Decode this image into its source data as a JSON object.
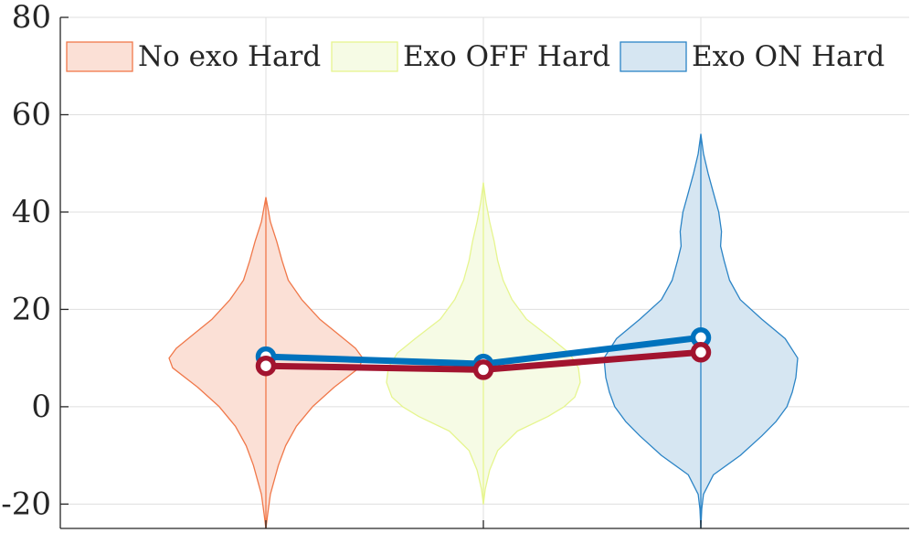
{
  "chart_data": {
    "type": "violin",
    "categories": [
      "",
      "",
      ""
    ],
    "ylim": [
      -25,
      80
    ],
    "yticks": [
      -20,
      0,
      20,
      40,
      60,
      80
    ],
    "ytick_labels": [
      "-20",
      "0",
      "20",
      "40",
      "60",
      "80"
    ],
    "grid": true,
    "legend_position": "top",
    "series": [
      {
        "name": "No exo Hard",
        "fill_color": "#fbe0d6",
        "edge_color": "#f0784a",
        "range": [
          -25,
          43
        ],
        "median": 8,
        "density": [
          [
            -25,
            0
          ],
          [
            -22,
            2
          ],
          [
            -18,
            5
          ],
          [
            -12,
            14
          ],
          [
            -8,
            22
          ],
          [
            -4,
            34
          ],
          [
            0,
            52
          ],
          [
            4,
            76
          ],
          [
            8,
            104
          ],
          [
            10,
            108
          ],
          [
            12,
            100
          ],
          [
            15,
            80
          ],
          [
            18,
            60
          ],
          [
            22,
            40
          ],
          [
            26,
            25
          ],
          [
            30,
            18
          ],
          [
            34,
            12
          ],
          [
            38,
            5
          ],
          [
            41,
            2
          ],
          [
            43,
            0
          ]
        ]
      },
      {
        "name": "Exo OFF Hard",
        "fill_color": "#f6fbe5",
        "edge_color": "#e6f58f",
        "range": [
          -20,
          46
        ],
        "median": 7,
        "density": [
          [
            -20,
            0
          ],
          [
            -17,
            2
          ],
          [
            -13,
            7
          ],
          [
            -9,
            16
          ],
          [
            -5,
            38
          ],
          [
            -2,
            72
          ],
          [
            0,
            90
          ],
          [
            2,
            102
          ],
          [
            5,
            108
          ],
          [
            8,
            106
          ],
          [
            11,
            96
          ],
          [
            14,
            76
          ],
          [
            18,
            48
          ],
          [
            22,
            32
          ],
          [
            26,
            22
          ],
          [
            30,
            16
          ],
          [
            34,
            12
          ],
          [
            38,
            7
          ],
          [
            42,
            3
          ],
          [
            46,
            0
          ]
        ]
      },
      {
        "name": "Exo ON Hard",
        "fill_color": "#d6e6f2",
        "edge_color": "#2b84c6",
        "range": [
          -25,
          56
        ],
        "median": 11,
        "density": [
          [
            -25,
            0
          ],
          [
            -21,
            1
          ],
          [
            -18,
            3
          ],
          [
            -14,
            14
          ],
          [
            -10,
            44
          ],
          [
            -6,
            68
          ],
          [
            -3,
            84
          ],
          [
            0,
            96
          ],
          [
            3,
            102
          ],
          [
            6,
            106
          ],
          [
            10,
            108
          ],
          [
            14,
            94
          ],
          [
            18,
            68
          ],
          [
            22,
            44
          ],
          [
            26,
            32
          ],
          [
            30,
            26
          ],
          [
            33,
            22
          ],
          [
            36,
            23
          ],
          [
            40,
            20
          ],
          [
            44,
            14
          ],
          [
            48,
            8
          ],
          [
            52,
            3
          ],
          [
            56,
            0
          ]
        ]
      }
    ],
    "lines": [
      {
        "name": "",
        "color": "#0072bd",
        "values": [
          10.3,
          8.8,
          14.2
        ]
      },
      {
        "name": "",
        "color": "#a2142f",
        "values": [
          8.4,
          7.6,
          11.2
        ]
      }
    ]
  }
}
